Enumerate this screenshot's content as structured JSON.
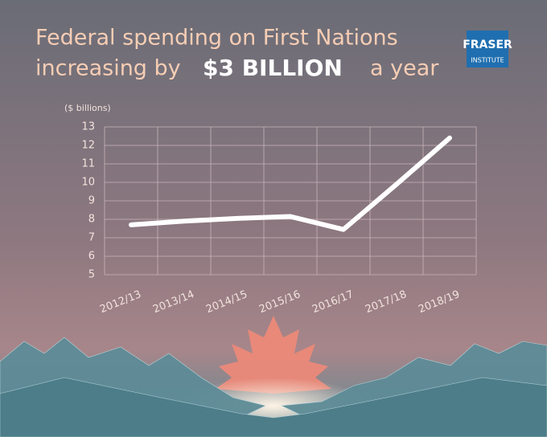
{
  "logo": {
    "line1": "FRASER",
    "line2": "INSTITUTE"
  },
  "chart_data": {
    "type": "line",
    "title": "Federal spending on First Nations",
    "title_line2_start": "increasing by",
    "title_highlight": "$3 BILLION",
    "title_line2_end": "a year",
    "y_label": "($ billions)",
    "categories": [
      "2012/13",
      "2013/14",
      "2014/15",
      "2015/16",
      "2016/17",
      "2017/18",
      "2018/19"
    ],
    "values": [
      7.7,
      7.9,
      8.05,
      8.15,
      7.45,
      9.9,
      12.4
    ],
    "color": "#ffffff",
    "ylim": [
      5,
      13
    ],
    "yticks": [
      5,
      6,
      7,
      8,
      9,
      10,
      11,
      12,
      13
    ],
    "grid": true
  }
}
